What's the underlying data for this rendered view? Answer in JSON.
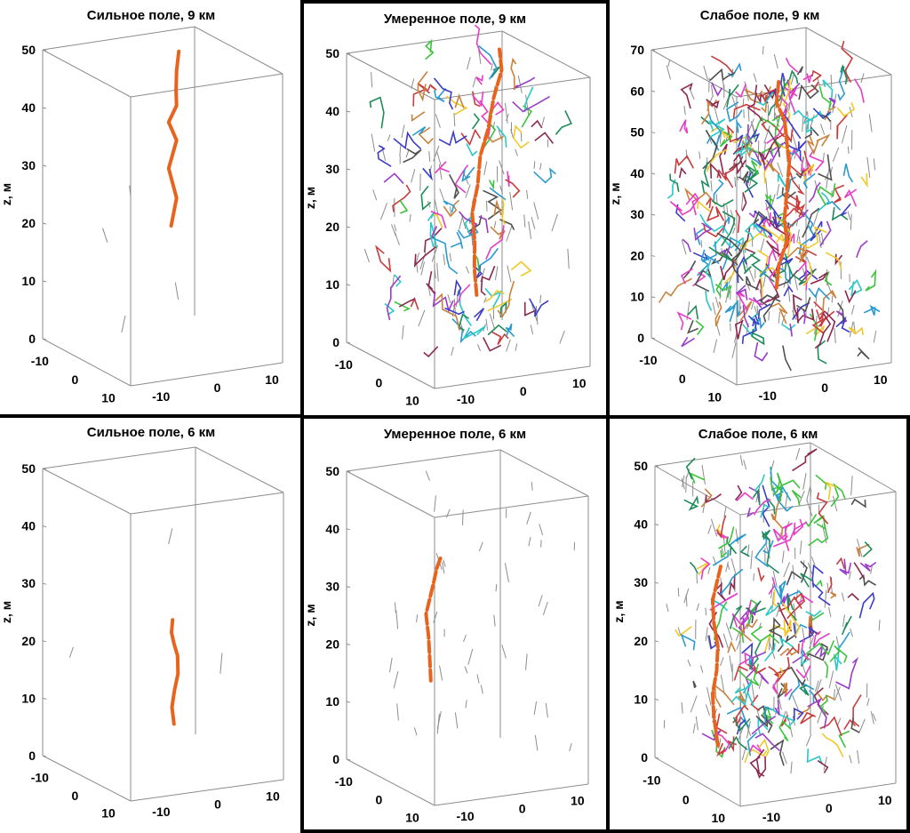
{
  "figure": {
    "description_lang": "ru",
    "main_crack_color": "#e8641e",
    "box_color": "#8c8c8c",
    "small_crack_gray": "#8c8c8c",
    "crack_palette": [
      "#e63cc8",
      "#2a9ad0",
      "#3cc33c",
      "#9a3cc8",
      "#c83c3c",
      "#f0c828",
      "#1e8c5a",
      "#c8823c",
      "#3c3cc8",
      "#28c8c8",
      "#8c2850",
      "#505050"
    ]
  },
  "chart_data": [
    {
      "id": "strong-9",
      "type": "3d-line",
      "title": "Сильное поле, 9 км",
      "zlabel": "z, м",
      "zlim": [
        0,
        50
      ],
      "zticks": [
        "0",
        "10",
        "20",
        "30",
        "40",
        "50"
      ],
      "xticks": [
        "-10",
        "0",
        "10"
      ],
      "yticks": [
        "-10",
        "0",
        "10"
      ],
      "density": "none",
      "gray_segments": 4,
      "main_crack": {
        "x": [
          4,
          4.5,
          3.5,
          4.5,
          3.5,
          4.5,
          3.8,
          4.5,
          5.5
        ],
        "y": [
          -4,
          -3,
          -4,
          -3,
          -4,
          -3,
          -2,
          -3,
          -4
        ],
        "z": [
          20,
          25,
          30,
          35,
          38,
          41,
          44,
          47,
          50
        ]
      }
    },
    {
      "id": "moderate-9",
      "type": "3d-line",
      "title": "Умеренное поле, 9 км",
      "zlabel": "z, м",
      "zlim": [
        0,
        50
      ],
      "zticks": [
        "0",
        "10",
        "20",
        "30",
        "40",
        "50"
      ],
      "xticks": [
        "-10",
        "0",
        "10"
      ],
      "yticks": [
        "-10",
        "0",
        "10"
      ],
      "density": "medium",
      "gray_segments": 110,
      "color_segments": 110,
      "main_crack": {
        "x": [
          5,
          4,
          3.5,
          3,
          3.5,
          4,
          5,
          6,
          7,
          6
        ],
        "y": [
          -6,
          -5,
          -4,
          -4,
          -3,
          -3,
          -2,
          -2,
          -1,
          0
        ],
        "z": [
          8,
          13,
          18,
          23,
          28,
          33,
          38,
          43,
          48,
          52
        ]
      }
    },
    {
      "id": "weak-9",
      "type": "3d-line",
      "title": "Слабое поле, 9 км",
      "zlabel": "z, м",
      "zlim": [
        0,
        70
      ],
      "zticks": [
        "0",
        "10",
        "20",
        "30",
        "40",
        "50",
        "60",
        "70"
      ],
      "xticks": [
        "-10",
        "0",
        "10"
      ],
      "yticks": [
        "-10",
        "0",
        "10"
      ],
      "density": "high",
      "gray_segments": 170,
      "color_segments": 300,
      "main_crack": {
        "x": [
          1,
          2,
          3,
          2,
          3,
          4,
          3,
          2,
          1,
          2
        ],
        "y": [
          0,
          -1,
          0,
          1,
          0,
          -1,
          0,
          1,
          0,
          -1
        ],
        "z": [
          15,
          20,
          26,
          32,
          38,
          44,
          50,
          56,
          60,
          65
        ]
      }
    },
    {
      "id": "strong-6",
      "type": "3d-line",
      "title": "Сильное поле, 6 км",
      "zlabel": "z, м",
      "zlim": [
        0,
        50
      ],
      "zticks": [
        "0",
        "10",
        "20",
        "30",
        "40",
        "50"
      ],
      "xticks": [
        "-10",
        "0",
        "10"
      ],
      "yticks": [
        "-10",
        "0",
        "10"
      ],
      "density": "none",
      "gray_segments": 3,
      "main_crack": {
        "x": [
          1,
          0.6,
          0.8,
          1.2,
          1.4,
          1,
          0.5,
          1
        ],
        "y": [
          2,
          2,
          2.5,
          3,
          2.5,
          2,
          2,
          1.5
        ],
        "z": [
          8,
          11,
          14,
          17,
          20,
          22,
          24,
          26
        ]
      }
    },
    {
      "id": "moderate-6",
      "type": "3d-line",
      "title": "Умеренное поле, 6 км",
      "zlabel": "z, м",
      "zlim": [
        0,
        50
      ],
      "zticks": [
        "0",
        "10",
        "20",
        "30",
        "40",
        "50"
      ],
      "xticks": [
        "-10",
        "0",
        "10"
      ],
      "yticks": [
        "-10",
        "0",
        "10"
      ],
      "density": "low",
      "gray_segments": 45,
      "main_crack": {
        "x": [
          -6,
          -6.5,
          -7,
          -7.5,
          -7,
          -6.5,
          -6,
          -5.5
        ],
        "y": [
          -2,
          -1.5,
          -1,
          -1,
          -0.5,
          0,
          0,
          0.5
        ],
        "z": [
          16,
          20,
          24,
          28,
          31,
          34,
          36,
          38
        ]
      }
    },
    {
      "id": "weak-6",
      "type": "3d-line",
      "title": "Слабое поле, 6 км",
      "zlabel": "z, м",
      "zlim": [
        0,
        50
      ],
      "zticks": [
        "0",
        "10",
        "20",
        "30",
        "40",
        "50"
      ],
      "xticks": [
        "-10",
        "0",
        "10"
      ],
      "yticks": [
        "-10",
        "0",
        "10"
      ],
      "density": "medium-high",
      "gray_segments": 150,
      "color_segments": 210,
      "main_crack": {
        "x": [
          -10,
          -10.5,
          -11,
          -10.5,
          -10,
          -10.5,
          -11,
          -10.5,
          -10
        ],
        "y": [
          -2,
          -2.5,
          -2,
          -1.5,
          -2,
          -2.5,
          -2,
          -1.5,
          -1
        ],
        "z": [
          5,
          10,
          14,
          18,
          22,
          26,
          30,
          33,
          36
        ]
      }
    }
  ]
}
